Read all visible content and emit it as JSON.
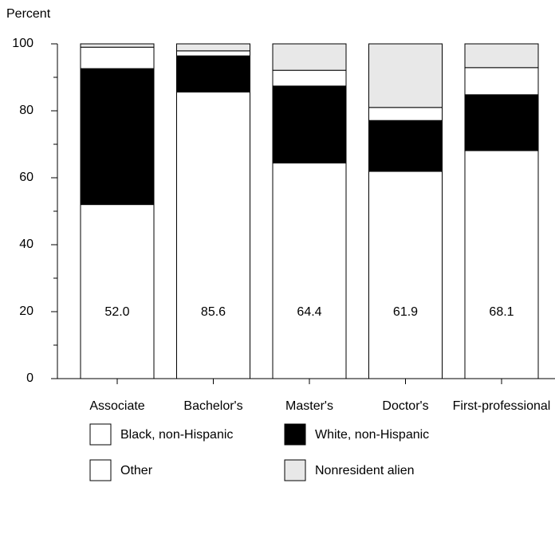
{
  "chart_data": {
    "type": "stacked-bar",
    "y_label": "Percent",
    "categories": [
      "Associate",
      "Bachelor's",
      "Master's",
      "Doctor's",
      "First-professional"
    ],
    "series": [
      {
        "name": "Black, non-Hispanic",
        "color": "#ffffff",
        "values": [
          52.0,
          85.6,
          64.4,
          61.9,
          68.1
        ],
        "value_labels": [
          "52.0",
          "85.6",
          "64.4",
          "61.9",
          "68.1"
        ]
      },
      {
        "name": "White, non-Hispanic",
        "color": "#000000",
        "values": [
          40.6,
          10.8,
          23.0,
          15.2,
          16.7
        ]
      },
      {
        "name": "Other",
        "color": "#ffffff",
        "values": [
          6.4,
          1.5,
          4.7,
          3.9,
          8.1
        ]
      },
      {
        "name": "Nonresident alien",
        "color": "#e8e8e8",
        "values": [
          1.0,
          2.1,
          7.9,
          19.0,
          7.1
        ]
      }
    ],
    "ylim": [
      0,
      100
    ],
    "yticks": [
      0,
      20,
      40,
      60,
      80,
      100
    ],
    "yminorticks": [
      10,
      30,
      50,
      70,
      90
    ]
  }
}
